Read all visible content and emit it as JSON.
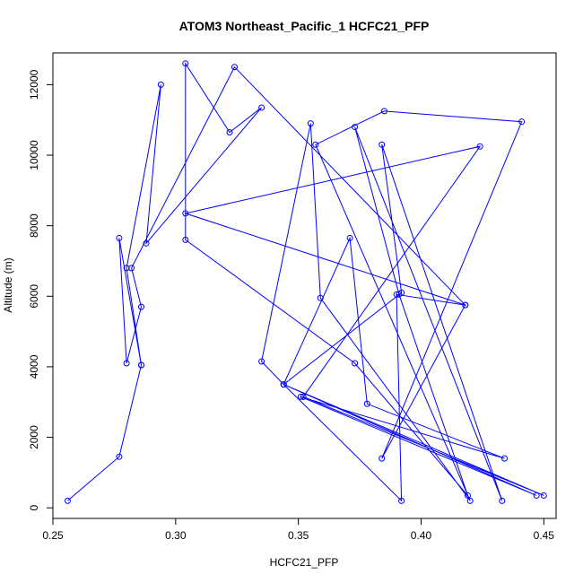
{
  "chart_data": {
    "type": "line",
    "title": "ATOM3 Northeast_Pacific_1 HCFC21_PFP",
    "xlabel": "HCFC21_PFP",
    "ylabel": "Altitude (m)",
    "xlim": [
      0.25,
      0.455
    ],
    "ylim": [
      -300,
      12900
    ],
    "x_ticks": [
      0.25,
      0.3,
      0.35,
      0.4,
      0.45
    ],
    "x_tick_labels": [
      "0.25",
      "0.30",
      "0.35",
      "0.40",
      "0.45"
    ],
    "y_ticks": [
      0,
      2000,
      4000,
      6000,
      8000,
      10000,
      12000
    ],
    "y_tick_labels": [
      "0",
      "2000",
      "4000",
      "6000",
      "8000",
      "10000",
      "12000"
    ],
    "color": "#0000ff",
    "markers": "open-circle",
    "grid": false,
    "series": [
      {
        "points": [
          [
            0.256,
            200
          ],
          [
            0.277,
            1450
          ],
          [
            0.286,
            4050
          ],
          [
            0.28,
            6800
          ],
          [
            0.294,
            12000
          ],
          [
            0.288,
            7500
          ],
          [
            0.335,
            11350
          ],
          [
            0.322,
            10650
          ],
          [
            0.304,
            12600
          ],
          [
            0.304,
            7600
          ],
          [
            0.373,
            4100
          ],
          [
            0.419,
            350
          ],
          [
            0.391,
            6050
          ],
          [
            0.373,
            10800
          ],
          [
            0.433,
            200
          ],
          [
            0.384,
            10300
          ],
          [
            0.392,
            6100
          ],
          [
            0.344,
            3500
          ],
          [
            0.447,
            350
          ],
          [
            0.351,
            3150
          ],
          [
            0.434,
            1400
          ],
          [
            0.378,
            2950
          ],
          [
            0.371,
            7650
          ],
          [
            0.344,
            3500
          ],
          [
            0.335,
            4150
          ],
          [
            0.355,
            10900
          ],
          [
            0.359,
            5950
          ],
          [
            0.42,
            200
          ],
          [
            0.357,
            10300
          ],
          [
            0.385,
            11250
          ],
          [
            0.441,
            10950
          ],
          [
            0.384,
            1400
          ],
          [
            0.418,
            5750
          ],
          [
            0.304,
            8350
          ],
          [
            0.424,
            10250
          ],
          [
            0.352,
            3150
          ],
          [
            0.45,
            350
          ],
          [
            0.344,
            3500
          ],
          [
            0.392,
            200
          ],
          [
            0.39,
            6050
          ],
          [
            0.418,
            5750
          ],
          [
            0.324,
            12500
          ],
          [
            0.282,
            6800
          ],
          [
            0.286,
            5700
          ],
          [
            0.28,
            4100
          ],
          [
            0.277,
            7650
          ],
          [
            0.286,
            4050
          ]
        ]
      }
    ]
  }
}
